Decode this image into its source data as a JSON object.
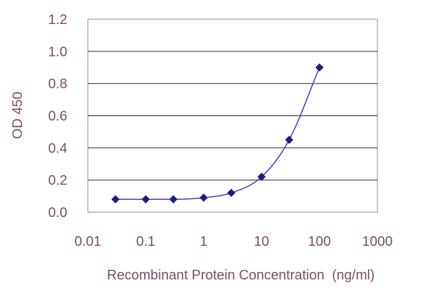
{
  "chart_data": {
    "type": "scatter",
    "xlabel": "Recombinant Protein Concentration  (ng/ml)",
    "ylabel": "OD 450",
    "x_scale": "log",
    "xlim": [
      0.01,
      1000
    ],
    "ylim": [
      0,
      1.2
    ],
    "x_ticks": [
      "0.01",
      "0.1",
      "1",
      "10",
      "100",
      "1000"
    ],
    "x_tick_values": [
      0.01,
      0.1,
      1,
      10,
      100,
      1000
    ],
    "y_ticks": [
      "0.0",
      "0.2",
      "0.4",
      "0.6",
      "0.8",
      "1.0",
      "1.2"
    ],
    "y_tick_values": [
      0,
      0.2,
      0.4,
      0.6,
      0.8,
      1.0,
      1.2
    ],
    "grid": "horizontal",
    "fit_curve": true,
    "series": [
      {
        "x": [
          0.03,
          0.1,
          0.3,
          1,
          3,
          10,
          30,
          100
        ],
        "y": [
          0.08,
          0.08,
          0.08,
          0.09,
          0.12,
          0.22,
          0.45,
          0.9
        ]
      }
    ],
    "colors": {
      "marker": "#1c1c8c",
      "line": "#3a3ab8",
      "grid": "#3a3a3a",
      "text": "#7a4d6b"
    }
  }
}
